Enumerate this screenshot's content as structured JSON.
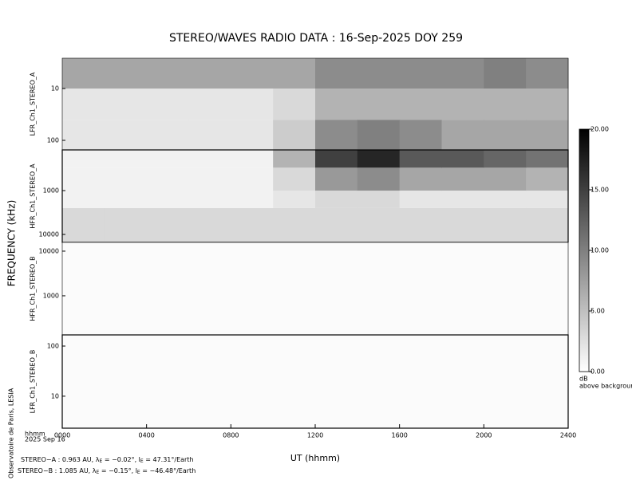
{
  "chart_data": {
    "type": "heatmap",
    "title": "STEREO/WAVES  RADIO  DATA : 16-Sep-2025  DOY 259",
    "x_label": "UT (hhmm)",
    "y_label": "FREQUENCY (kHz)",
    "x_unit": "hhmm",
    "date": "2025 Sep 16",
    "credit": "Observatoire de Paris, LESIA",
    "xlim": [
      0,
      24
    ],
    "xticks": [
      {
        "value": 0,
        "label": "0000"
      },
      {
        "value": 4,
        "label": "0400"
      },
      {
        "value": 8,
        "label": "0800"
      },
      {
        "value": 12,
        "label": "1200"
      },
      {
        "value": 16,
        "label": "1600"
      },
      {
        "value": 20,
        "label": "2000"
      },
      {
        "value": 24,
        "label": "2400"
      }
    ],
    "x_edges": [
      0,
      2,
      4,
      6,
      8,
      10,
      12,
      14,
      16,
      18,
      20,
      22,
      24
    ],
    "log_y": true,
    "panels": [
      {
        "name": "LFR_Ch1_STEREO_A",
        "ylim": [
          153,
          2.6
        ],
        "yticks": [
          10,
          100
        ],
        "y_edges": [
          153,
          40,
          10,
          2.6
        ],
        "values": [
          [
            2,
            2,
            2,
            2,
            2,
            4,
            9,
            10,
            9,
            7,
            7,
            7
          ],
          [
            2,
            2,
            2,
            2,
            2,
            3,
            6,
            6,
            6,
            6,
            6,
            6
          ],
          [
            7,
            7,
            7,
            7,
            7,
            7,
            9,
            9,
            9,
            9,
            10,
            9
          ]
        ]
      },
      {
        "name": "HFR_Ch1_STEREO_A",
        "ylim": [
          15200,
          118
        ],
        "yticks": [
          1000,
          10000
        ],
        "y_edges": [
          15200,
          2500,
          1000,
          300,
          118
        ],
        "values": [
          [
            3,
            3,
            3,
            3,
            3,
            3,
            3,
            3,
            3,
            3,
            3,
            3
          ],
          [
            1,
            1,
            1,
            1,
            1,
            2,
            3,
            3,
            2,
            2,
            2,
            2
          ],
          [
            1,
            1,
            1,
            1,
            1,
            3,
            8,
            9,
            7,
            7,
            7,
            6
          ],
          [
            1,
            1,
            1,
            1,
            1,
            6,
            15,
            17,
            13,
            13,
            12,
            11
          ]
        ]
      },
      {
        "name": "HFR_Ch1_STEREO_B",
        "ylim": [
          133,
          15700
        ],
        "yticks": [
          1000,
          10000
        ],
        "y_edges": [
          133,
          15700
        ],
        "values": [
          [
            0.3,
            0.3,
            0.3,
            0.3,
            0.3,
            0.3,
            0.3,
            0.3,
            0.3,
            0.3,
            0.3,
            0.3
          ]
        ]
      },
      {
        "name": "LFR_Ch1_STEREO_B",
        "ylim": [
          2.3,
          167
        ],
        "yticks": [
          10,
          100
        ],
        "y_edges": [
          2.3,
          167
        ],
        "values": [
          [
            0.3,
            0.3,
            0.3,
            0.3,
            0.3,
            0.3,
            0.3,
            0.3,
            0.3,
            0.3,
            0.3,
            0.3
          ]
        ]
      }
    ],
    "colorbar": {
      "lim": [
        0,
        20
      ],
      "ticks": [
        {
          "value": 0,
          "label": "0.00"
        },
        {
          "value": 5,
          "label": "5.00"
        },
        {
          "value": 10,
          "label": "10.00"
        },
        {
          "value": 15,
          "label": "15.00"
        },
        {
          "value": 20,
          "label": "20.00"
        }
      ],
      "label": "dB",
      "sublabel": "above background"
    },
    "annotations": [
      [
        "STEREO−A : 0.963 AU, λ",
        "E",
        " = −0.02°, l",
        "E",
        " = 47.31°/Earth"
      ],
      [
        "STEREO−B : 1.085 AU, λ",
        "E",
        " = −0.15°, l",
        "E",
        " = −46.48°/Earth"
      ]
    ]
  }
}
